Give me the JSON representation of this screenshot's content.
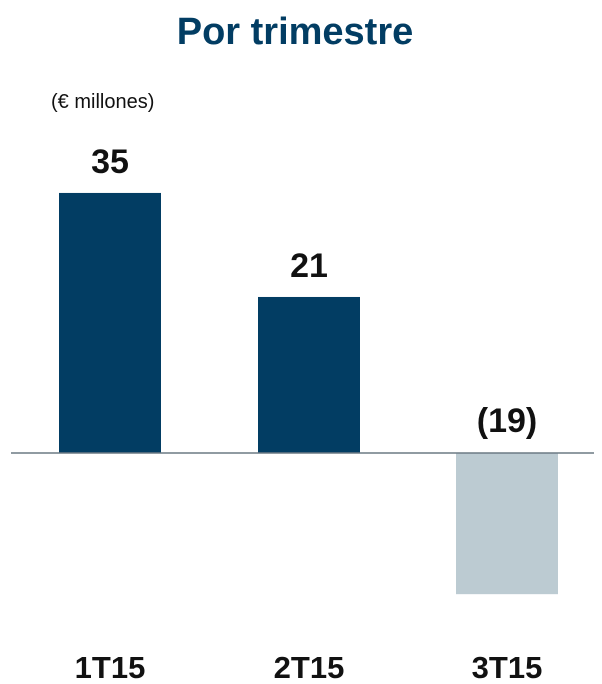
{
  "chart_data": {
    "type": "bar",
    "title": "Por trimestre",
    "unit_label": "(€ millones)",
    "categories": [
      "1T15",
      "2T15",
      "3T15"
    ],
    "values": [
      35,
      21,
      -19
    ],
    "value_labels": [
      "35",
      "21",
      "(19)"
    ],
    "colors": {
      "title": "#023d63",
      "positive": "#023d63",
      "negative": "#bccbd2",
      "axis": "#6c7a84",
      "text": "#111111"
    },
    "grid": false,
    "legend": "none"
  }
}
